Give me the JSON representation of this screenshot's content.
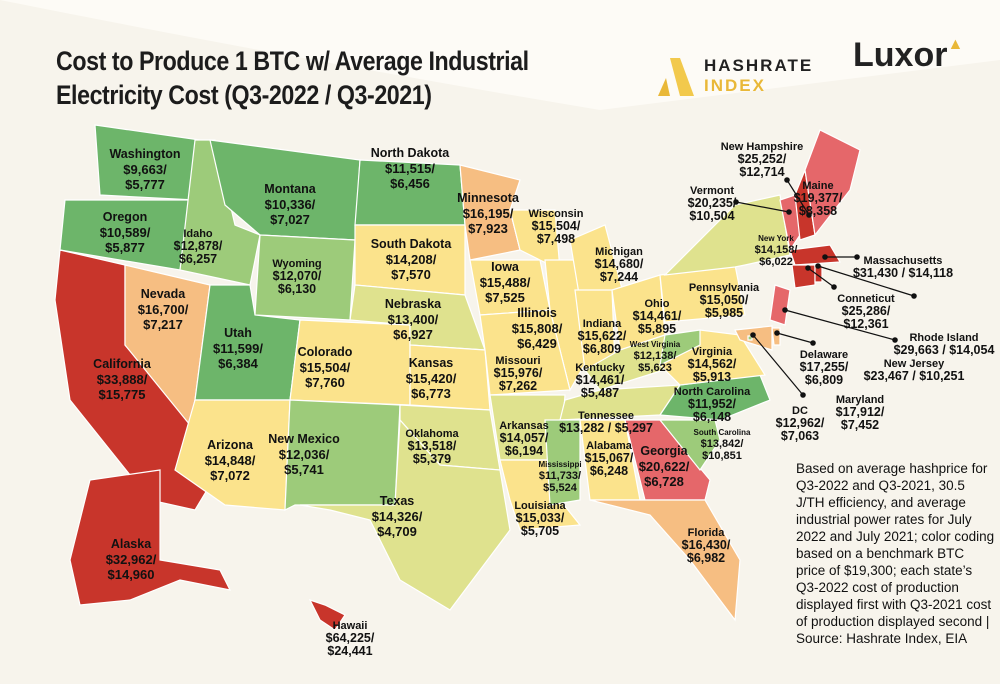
{
  "title": {
    "line1": "Cost to Produce 1 BTC w/ Average Industrial",
    "line2": "Electricity Cost (Q3-2022 / Q3-2021)"
  },
  "logos": {
    "hashrate_index": [
      "HASHRATE",
      "INDEX"
    ],
    "luxor": "Luxor"
  },
  "note": "Based on average hashprice for Q3-2022 and Q3-2021, 30.5 J/TH efficiency, and average industrial power rates for July 2022 and July 2021; color coding based on a benchmark BTC price of $19,300; each state’s Q3-2022 cost of production displayed first with Q3-2021 cost of production displayed second | Source: Hashrate Index, EIA",
  "colors": {
    "red": "#c8352b",
    "light_red": "#e5676a",
    "orange": "#f6be82",
    "yellow": "#fbe38c",
    "yellow_green": "#dfe28e",
    "light_green": "#9dcb7a",
    "green": "#6db56a",
    "background": "#fdfbf6"
  },
  "states": [
    {
      "name": "Washington",
      "q3_2022": "$9,663",
      "q3_2021": "$5,777",
      "color": "green"
    },
    {
      "name": "Oregon",
      "q3_2022": "$10,589",
      "q3_2021": "$5,877",
      "color": "green"
    },
    {
      "name": "California",
      "q3_2022": "$33,888",
      "q3_2021": "$15,775",
      "color": "red"
    },
    {
      "name": "Idaho",
      "q3_2022": "$12,878",
      "q3_2021": "$6,257",
      "color": "light_green"
    },
    {
      "name": "Montana",
      "q3_2022": "$10,336",
      "q3_2021": "$7,027",
      "color": "green"
    },
    {
      "name": "Wyoming",
      "q3_2022": "$12,070",
      "q3_2021": "$6,130",
      "color": "light_green"
    },
    {
      "name": "Nevada",
      "q3_2022": "$16,700",
      "q3_2021": "$7,217",
      "color": "orange"
    },
    {
      "name": "Utah",
      "q3_2022": "$11,599",
      "q3_2021": "$6,384",
      "color": "green"
    },
    {
      "name": "Arizona",
      "q3_2022": "$14,848",
      "q3_2021": "$7,072",
      "color": "yellow"
    },
    {
      "name": "Colorado",
      "q3_2022": "$15,504",
      "q3_2021": "$7,760",
      "color": "yellow"
    },
    {
      "name": "New Mexico",
      "q3_2022": "$12,036",
      "q3_2021": "$5,741",
      "color": "light_green"
    },
    {
      "name": "North Dakota",
      "q3_2022": "$11,515",
      "q3_2021": "$6,456",
      "color": "green"
    },
    {
      "name": "South Dakota",
      "q3_2022": "$14,208",
      "q3_2021": "$7,570",
      "color": "yellow"
    },
    {
      "name": "Nebraska",
      "q3_2022": "$13,400",
      "q3_2021": "$6,927",
      "color": "yellow_green"
    },
    {
      "name": "Kansas",
      "q3_2022": "$15,420",
      "q3_2021": "$6,773",
      "color": "yellow"
    },
    {
      "name": "Oklahoma",
      "q3_2022": "$13,518",
      "q3_2021": "$5,379",
      "color": "yellow_green"
    },
    {
      "name": "Texas",
      "q3_2022": "$14,326",
      "q3_2021": "$4,709",
      "color": "yellow_green"
    },
    {
      "name": "Minnesota",
      "q3_2022": "$16,195",
      "q3_2021": "$7,923",
      "color": "orange"
    },
    {
      "name": "Iowa",
      "q3_2022": "$15,488",
      "q3_2021": "$7,525",
      "color": "yellow"
    },
    {
      "name": "Wisconsin",
      "q3_2022": "$15,504",
      "q3_2021": "$7,498",
      "color": "yellow"
    },
    {
      "name": "Illinois",
      "q3_2022": "$15,808",
      "q3_2021": "$6,429",
      "color": "yellow"
    },
    {
      "name": "Missouri",
      "q3_2022": "$15,976",
      "q3_2021": "$7,262",
      "color": "yellow"
    },
    {
      "name": "Arkansas",
      "q3_2022": "$14,057",
      "q3_2021": "$6,194",
      "color": "yellow_green"
    },
    {
      "name": "Louisiana",
      "q3_2022": "$15,033",
      "q3_2021": "$5,705",
      "color": "yellow"
    },
    {
      "name": "Michigan",
      "q3_2022": "$14,680",
      "q3_2021": "$7,244",
      "color": "yellow"
    },
    {
      "name": "Indiana",
      "q3_2022": "$15,622",
      "q3_2021": "$6,809",
      "color": "yellow"
    },
    {
      "name": "Ohio",
      "q3_2022": "$14,461",
      "q3_2021": "$5,895",
      "color": "yellow"
    },
    {
      "name": "Kentucky",
      "q3_2022": "$14,461",
      "q3_2021": "$5,487",
      "color": "yellow_green"
    },
    {
      "name": "Tennessee",
      "q3_2022": "$13,282",
      "q3_2021": "$5,297",
      "color": "yellow_green"
    },
    {
      "name": "Mississippi",
      "q3_2022": "$11,733",
      "q3_2021": "$5,524",
      "color": "light_green"
    },
    {
      "name": "Alabama",
      "q3_2022": "$15,067",
      "q3_2021": "$6,248",
      "color": "yellow"
    },
    {
      "name": "Georgia",
      "q3_2022": "$20,622",
      "q3_2021": "$6,728",
      "color": "light_red"
    },
    {
      "name": "Florida",
      "q3_2022": "$16,430",
      "q3_2021": "$6,982",
      "color": "orange"
    },
    {
      "name": "South Carolina",
      "q3_2022": "$13,842",
      "q3_2021": "$10,851",
      "color": "light_green"
    },
    {
      "name": "North Carolina",
      "q3_2022": "$11,952",
      "q3_2021": "$6,148",
      "color": "green"
    },
    {
      "name": "Virginia",
      "q3_2022": "$14,562",
      "q3_2021": "$5,913",
      "color": "yellow"
    },
    {
      "name": "West Virginia",
      "q3_2022": "$12,138",
      "q3_2021": "$5,623",
      "color": "light_green"
    },
    {
      "name": "Pennsylvania",
      "q3_2022": "$15,050",
      "q3_2021": "$5,985",
      "color": "yellow"
    },
    {
      "name": "New York",
      "q3_2022": "$14,158",
      "q3_2021": "$6,022",
      "color": "yellow_green"
    },
    {
      "name": "Vermont",
      "q3_2022": "$20,235",
      "q3_2021": "$10,504",
      "color": "light_red"
    },
    {
      "name": "New Hampshire",
      "q3_2022": "$25,252",
      "q3_2021": "$12,714",
      "color": "red"
    },
    {
      "name": "Maine",
      "q3_2022": "$19,377",
      "q3_2021": "$8,358",
      "color": "light_red"
    },
    {
      "name": "Massachusetts",
      "q3_2022": "$31,430",
      "q3_2021": "$14,118",
      "color": "red"
    },
    {
      "name": "Conneticut",
      "q3_2022": "$25,286",
      "q3_2021": "$12,361",
      "color": "red"
    },
    {
      "name": "Rhode Island",
      "q3_2022": "$29,663",
      "q3_2021": "$14,054",
      "color": "red"
    },
    {
      "name": "New Jersey",
      "q3_2022": "$23,467",
      "q3_2021": "$10,251",
      "color": "light_red"
    },
    {
      "name": "Delaware",
      "q3_2022": "$17,255",
      "q3_2021": "$6,809",
      "color": "orange"
    },
    {
      "name": "Maryland",
      "q3_2022": "$17,912",
      "q3_2021": "$7,452",
      "color": "orange"
    },
    {
      "name": "DC",
      "q3_2022": "$12,962",
      "q3_2021": "$7,063",
      "color": "light_green"
    },
    {
      "name": "Alaska",
      "q3_2022": "$32,962",
      "q3_2021": "$14,960",
      "color": "red"
    },
    {
      "name": "Hawaii",
      "q3_2022": "$64,225",
      "q3_2021": "$24,441",
      "color": "red"
    }
  ]
}
